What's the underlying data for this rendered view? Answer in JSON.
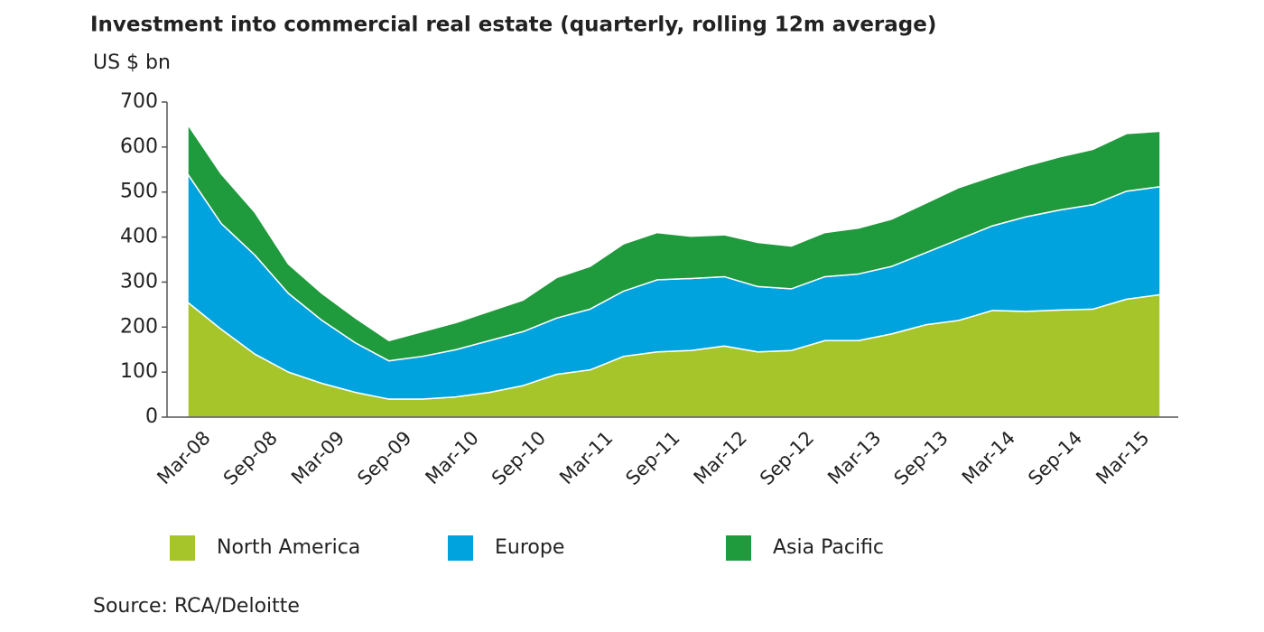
{
  "chart_data": {
    "type": "stacked-area",
    "title": "Investment into commercial real estate (quarterly, rolling 12m average)",
    "y_label": "US $ bn",
    "source": "Source: RCA/Deloitte",
    "categories": [
      "Mar-08",
      null,
      "Sep-08",
      null,
      "Mar-09",
      null,
      "Sep-09",
      null,
      "Mar-10",
      null,
      "Sep-10",
      null,
      "Mar-11",
      null,
      "Sep-11",
      null,
      "Mar-12",
      null,
      "Sep-12",
      null,
      "Mar-13",
      null,
      "Sep-13",
      null,
      "Mar-14",
      null,
      "Sep-14",
      null,
      "Mar-15",
      null
    ],
    "series": [
      {
        "name": "North America",
        "color": "#a5c52a",
        "values": [
          255,
          195,
          140,
          100,
          75,
          55,
          40,
          40,
          45,
          55,
          70,
          95,
          105,
          135,
          145,
          148,
          158,
          145,
          148,
          170,
          170,
          185,
          205,
          215,
          237,
          235,
          238,
          240,
          262,
          272
        ]
      },
      {
        "name": "Europe",
        "color": "#00a3de",
        "values": [
          285,
          235,
          220,
          175,
          140,
          110,
          85,
          95,
          105,
          115,
          120,
          125,
          135,
          145,
          160,
          160,
          154,
          145,
          137,
          142,
          148,
          150,
          160,
          180,
          188,
          210,
          222,
          232,
          240,
          240
        ]
      },
      {
        "name": "Asia Pacific",
        "color": "#1f9a3c",
        "values": [
          110,
          110,
          95,
          65,
          60,
          55,
          45,
          55,
          60,
          65,
          70,
          90,
          95,
          105,
          105,
          94,
          93,
          98,
          95,
          98,
          102,
          105,
          110,
          115,
          110,
          113,
          118,
          123,
          128,
          123
        ]
      }
    ],
    "ylim": [
      0,
      700
    ],
    "yticks": [
      0,
      100,
      200,
      300,
      400,
      500,
      600,
      700
    ]
  }
}
